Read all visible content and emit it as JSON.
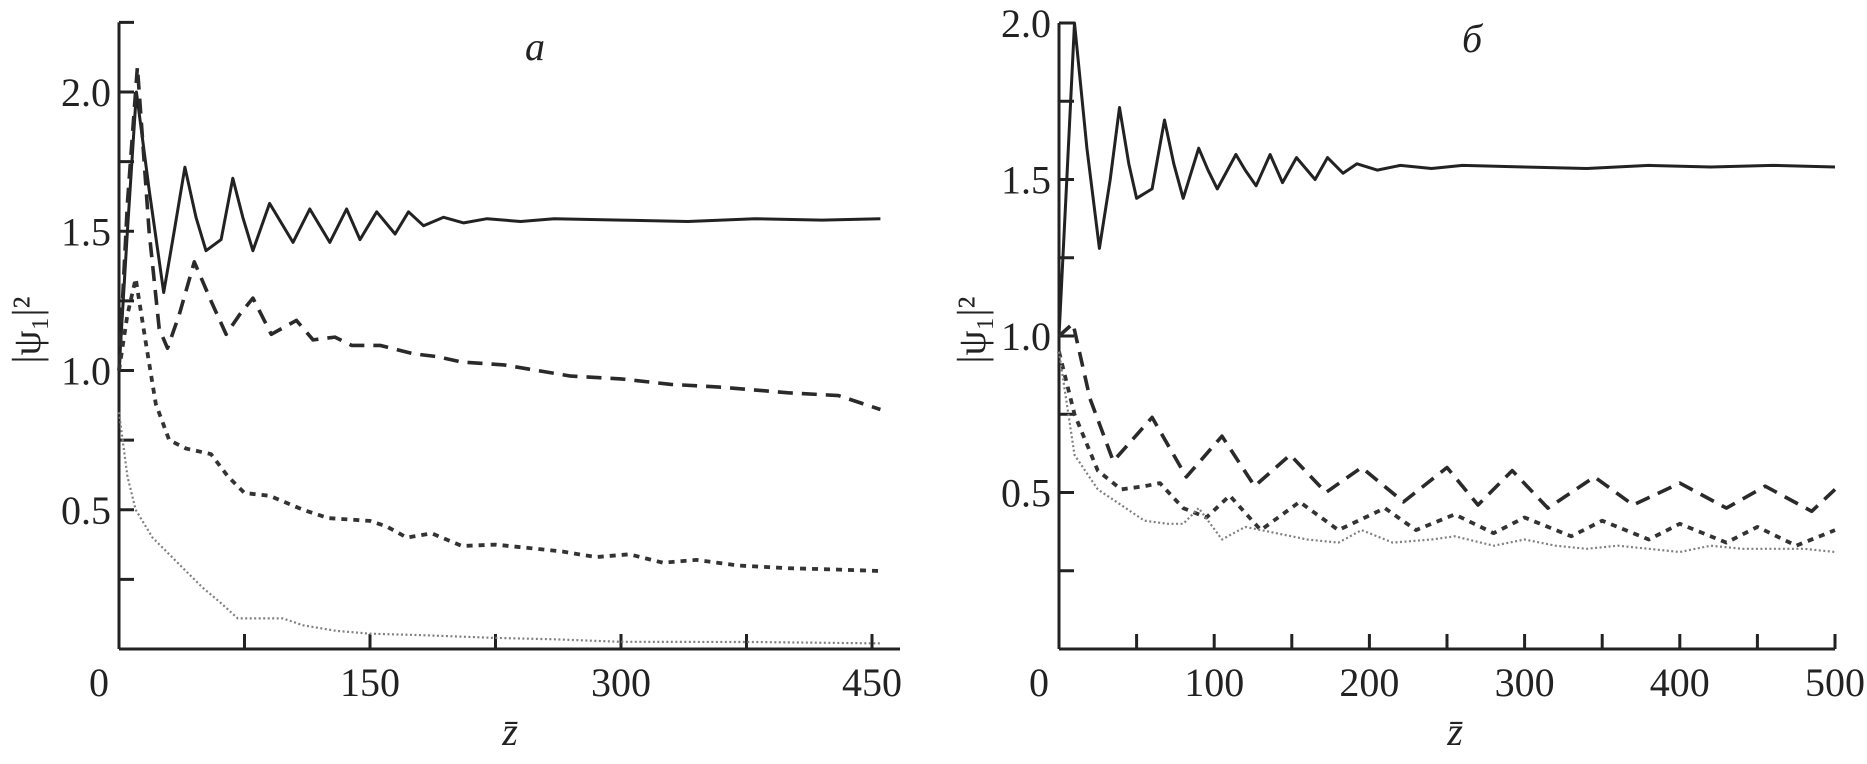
{
  "chart_data": [
    {
      "type": "line",
      "panel_label": "a",
      "xlabel": "z̄",
      "ylabel": "|ψ₁|²",
      "xlim": [
        0,
        466
      ],
      "ylim": [
        0,
        2.25
      ],
      "xticks": [
        0,
        75,
        150,
        225,
        300,
        375,
        450
      ],
      "xtick_labels": [
        {
          "value": 0,
          "text": "0"
        },
        {
          "value": 150,
          "text": "150"
        },
        {
          "value": 300,
          "text": "300"
        },
        {
          "value": 450,
          "text": "450"
        }
      ],
      "yticks": [
        0.25,
        0.5,
        0.75,
        1.0,
        1.25,
        1.5,
        1.75,
        2.0,
        2.25
      ],
      "ytick_labels": [
        {
          "value": 0.5,
          "text": "0.5"
        },
        {
          "value": 1.0,
          "text": "1.0"
        },
        {
          "value": 1.5,
          "text": "1.5"
        },
        {
          "value": 2.0,
          "text": "2.0"
        }
      ],
      "grid": false,
      "series": [
        {
          "name": "solid",
          "style": "solid",
          "color": "#222222",
          "points": [
            [
              0,
              1.0
            ],
            [
              5,
              1.5
            ],
            [
              10.4,
              2.0
            ],
            [
              18,
              1.65
            ],
            [
              26.7,
              1.28
            ],
            [
              33,
              1.5
            ],
            [
              39.4,
              1.73
            ],
            [
              46,
              1.55
            ],
            [
              52,
              1.43
            ],
            [
              61,
              1.47
            ],
            [
              68,
              1.69
            ],
            [
              74,
              1.55
            ],
            [
              80,
              1.43
            ],
            [
              90,
              1.6
            ],
            [
              97,
              1.53
            ],
            [
              104,
              1.46
            ],
            [
              114,
              1.58
            ],
            [
              120,
              1.52
            ],
            [
              126,
              1.46
            ],
            [
              136,
              1.58
            ],
            [
              144,
              1.47
            ],
            [
              154,
              1.57
            ],
            [
              165,
              1.49
            ],
            [
              173,
              1.57
            ],
            [
              182,
              1.52
            ],
            [
              194,
              1.55
            ],
            [
              206,
              1.53
            ],
            [
              220,
              1.545
            ],
            [
              240,
              1.535
            ],
            [
              260,
              1.545
            ],
            [
              300,
              1.54
            ],
            [
              340,
              1.535
            ],
            [
              380,
              1.545
            ],
            [
              420,
              1.54
            ],
            [
              455,
              1.545
            ]
          ]
        },
        {
          "name": "long-dashed",
          "style": "long-dash",
          "color": "#2a2a2a",
          "points": [
            [
              0,
              1.0
            ],
            [
              5,
              1.6
            ],
            [
              11,
              2.09
            ],
            [
              18,
              1.5
            ],
            [
              24,
              1.15
            ],
            [
              29,
              1.08
            ],
            [
              36,
              1.2
            ],
            [
              45,
              1.39
            ],
            [
              55,
              1.25
            ],
            [
              64,
              1.13
            ],
            [
              72,
              1.2
            ],
            [
              80,
              1.26
            ],
            [
              91,
              1.13
            ],
            [
              106,
              1.18
            ],
            [
              116,
              1.11
            ],
            [
              129,
              1.12
            ],
            [
              139,
              1.09
            ],
            [
              156,
              1.09
            ],
            [
              176,
              1.06
            ],
            [
              190,
              1.05
            ],
            [
              205,
              1.03
            ],
            [
              230,
              1.02
            ],
            [
              250,
              1.0
            ],
            [
              270,
              0.98
            ],
            [
              300,
              0.97
            ],
            [
              330,
              0.95
            ],
            [
              360,
              0.94
            ],
            [
              400,
              0.92
            ],
            [
              430,
              0.91
            ],
            [
              455,
              0.86
            ]
          ]
        },
        {
          "name": "short-dashed",
          "style": "short-dash",
          "color": "#333333",
          "points": [
            [
              0,
              1.0
            ],
            [
              5,
              1.2
            ],
            [
              10,
              1.33
            ],
            [
              16,
              1.1
            ],
            [
              22,
              0.88
            ],
            [
              30,
              0.75
            ],
            [
              40,
              0.72
            ],
            [
              55,
              0.7
            ],
            [
              65,
              0.62
            ],
            [
              75,
              0.56
            ],
            [
              90,
              0.55
            ],
            [
              110,
              0.5
            ],
            [
              125,
              0.47
            ],
            [
              150,
              0.46
            ],
            [
              160,
              0.44
            ],
            [
              172,
              0.4
            ],
            [
              187,
              0.415
            ],
            [
              205,
              0.37
            ],
            [
              225,
              0.375
            ],
            [
              265,
              0.35
            ],
            [
              285,
              0.33
            ],
            [
              305,
              0.34
            ],
            [
              325,
              0.31
            ],
            [
              345,
              0.32
            ],
            [
              370,
              0.3
            ],
            [
              400,
              0.29
            ],
            [
              430,
              0.285
            ],
            [
              455,
              0.28
            ]
          ]
        },
        {
          "name": "dotted",
          "style": "dotted",
          "color": "#808080",
          "points": [
            [
              0,
              0.85
            ],
            [
              5,
              0.62
            ],
            [
              10,
              0.5
            ],
            [
              20,
              0.4
            ],
            [
              30,
              0.34
            ],
            [
              40,
              0.28
            ],
            [
              50,
              0.22
            ],
            [
              60,
              0.17
            ],
            [
              71,
              0.11
            ],
            [
              85,
              0.11
            ],
            [
              98,
              0.11
            ],
            [
              110,
              0.085
            ],
            [
              130,
              0.065
            ],
            [
              150,
              0.055
            ],
            [
              180,
              0.05
            ],
            [
              225,
              0.04
            ],
            [
              260,
              0.035
            ],
            [
              300,
              0.026
            ],
            [
              380,
              0.025
            ],
            [
              455,
              0.02
            ]
          ]
        }
      ]
    },
    {
      "type": "line",
      "panel_label": "б",
      "xlabel": "z̄",
      "ylabel": "|ψ₁|²",
      "xlim": [
        0,
        500
      ],
      "ylim": [
        0,
        2.0
      ],
      "xticks": [
        50,
        100,
        150,
        200,
        250,
        300,
        350,
        400,
        450,
        500
      ],
      "xtick_labels": [
        {
          "value": 0,
          "text": "0"
        },
        {
          "value": 100,
          "text": "100"
        },
        {
          "value": 200,
          "text": "200"
        },
        {
          "value": 300,
          "text": "300"
        },
        {
          "value": 400,
          "text": "400"
        },
        {
          "value": 500,
          "text": "500"
        }
      ],
      "yticks": [
        0.25,
        0.5,
        0.75,
        1.0,
        1.25,
        1.5,
        1.75,
        2.0
      ],
      "ytick_labels": [
        {
          "value": 0.5,
          "text": "0.5"
        },
        {
          "value": 1.0,
          "text": "1.0"
        },
        {
          "value": 1.5,
          "text": "1.5"
        },
        {
          "value": 2.0,
          "text": "2.0"
        }
      ],
      "grid": false,
      "series": [
        {
          "name": "solid",
          "style": "solid",
          "color": "#222222",
          "points": [
            [
              0,
              1.0
            ],
            [
              5,
              1.5
            ],
            [
              10,
              2.0
            ],
            [
              18,
              1.6
            ],
            [
              26,
              1.28
            ],
            [
              33,
              1.5
            ],
            [
              39,
              1.73
            ],
            [
              45,
              1.55
            ],
            [
              50,
              1.44
            ],
            [
              60,
              1.47
            ],
            [
              68,
              1.69
            ],
            [
              74,
              1.55
            ],
            [
              80,
              1.44
            ],
            [
              90,
              1.6
            ],
            [
              96,
              1.53
            ],
            [
              102,
              1.47
            ],
            [
              114,
              1.58
            ],
            [
              120,
              1.53
            ],
            [
              127,
              1.48
            ],
            [
              136,
              1.58
            ],
            [
              144,
              1.49
            ],
            [
              153,
              1.57
            ],
            [
              165,
              1.5
            ],
            [
              173,
              1.57
            ],
            [
              183,
              1.52
            ],
            [
              192,
              1.55
            ],
            [
              205,
              1.53
            ],
            [
              220,
              1.545
            ],
            [
              240,
              1.535
            ],
            [
              260,
              1.545
            ],
            [
              300,
              1.54
            ],
            [
              340,
              1.535
            ],
            [
              380,
              1.545
            ],
            [
              420,
              1.54
            ],
            [
              460,
              1.545
            ],
            [
              500,
              1.54
            ]
          ]
        },
        {
          "name": "long-dashed",
          "style": "long-dash",
          "color": "#2a2a2a",
          "points": [
            [
              0,
              1.0
            ],
            [
              9,
              1.04
            ],
            [
              20,
              0.8
            ],
            [
              35,
              0.6
            ],
            [
              60,
              0.74
            ],
            [
              82,
              0.55
            ],
            [
              105,
              0.68
            ],
            [
              126,
              0.52
            ],
            [
              149,
              0.62
            ],
            [
              172,
              0.5
            ],
            [
              195,
              0.58
            ],
            [
              222,
              0.47
            ],
            [
              250,
              0.58
            ],
            [
              270,
              0.46
            ],
            [
              292,
              0.57
            ],
            [
              315,
              0.45
            ],
            [
              345,
              0.55
            ],
            [
              370,
              0.46
            ],
            [
              400,
              0.53
            ],
            [
              430,
              0.45
            ],
            [
              455,
              0.52
            ],
            [
              485,
              0.44
            ],
            [
              500,
              0.51
            ]
          ]
        },
        {
          "name": "short-dashed",
          "style": "short-dash",
          "color": "#333333",
          "points": [
            [
              0,
              0.95
            ],
            [
              10,
              0.75
            ],
            [
              25,
              0.57
            ],
            [
              40,
              0.51
            ],
            [
              55,
              0.52
            ],
            [
              65,
              0.53
            ],
            [
              80,
              0.45
            ],
            [
              95,
              0.42
            ],
            [
              110,
              0.49
            ],
            [
              130,
              0.38
            ],
            [
              155,
              0.47
            ],
            [
              180,
              0.38
            ],
            [
              210,
              0.45
            ],
            [
              230,
              0.38
            ],
            [
              255,
              0.43
            ],
            [
              280,
              0.37
            ],
            [
              300,
              0.42
            ],
            [
              330,
              0.36
            ],
            [
              350,
              0.41
            ],
            [
              380,
              0.35
            ],
            [
              400,
              0.4
            ],
            [
              430,
              0.34
            ],
            [
              450,
              0.39
            ],
            [
              475,
              0.33
            ],
            [
              500,
              0.38
            ]
          ]
        },
        {
          "name": "dotted",
          "style": "dotted",
          "color": "#808080",
          "points": [
            [
              0,
              0.95
            ],
            [
              10,
              0.62
            ],
            [
              25,
              0.51
            ],
            [
              40,
              0.46
            ],
            [
              55,
              0.41
            ],
            [
              70,
              0.4
            ],
            [
              80,
              0.4
            ],
            [
              90,
              0.45
            ],
            [
              105,
              0.35
            ],
            [
              120,
              0.39
            ],
            [
              140,
              0.37
            ],
            [
              160,
              0.35
            ],
            [
              180,
              0.34
            ],
            [
              195,
              0.38
            ],
            [
              215,
              0.34
            ],
            [
              240,
              0.35
            ],
            [
              255,
              0.36
            ],
            [
              280,
              0.33
            ],
            [
              300,
              0.35
            ],
            [
              320,
              0.33
            ],
            [
              340,
              0.32
            ],
            [
              360,
              0.33
            ],
            [
              380,
              0.32
            ],
            [
              400,
              0.31
            ],
            [
              420,
              0.33
            ],
            [
              440,
              0.32
            ],
            [
              460,
              0.32
            ],
            [
              480,
              0.32
            ],
            [
              500,
              0.31
            ]
          ]
        }
      ]
    }
  ]
}
